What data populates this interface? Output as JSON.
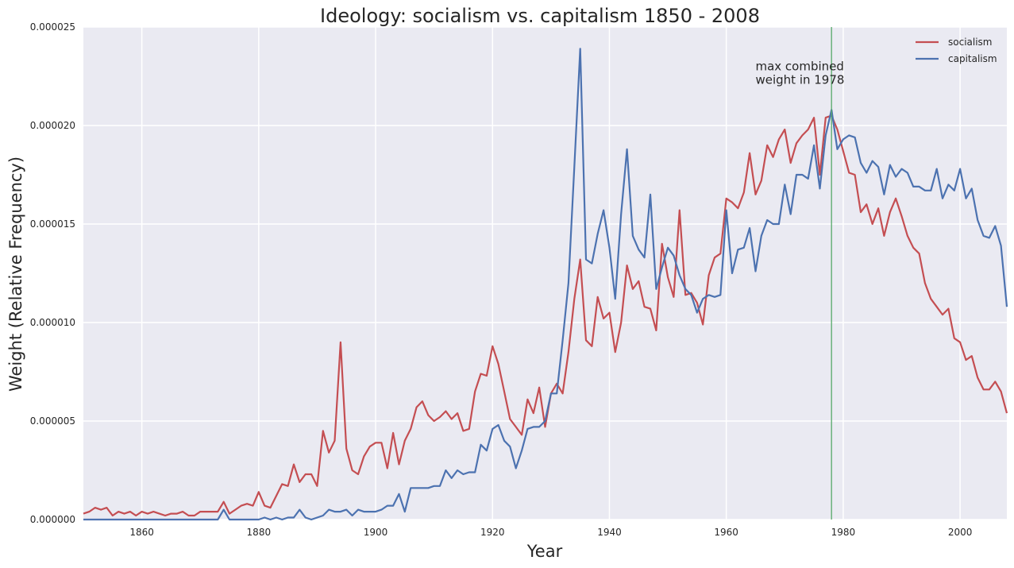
{
  "chart_data": {
    "type": "line",
    "title": "Ideology: socialism vs. capitalism 1850 - 2008",
    "xlabel": "Year",
    "ylabel": "Weight (Relative Frequency)",
    "xlim": [
      1850,
      2008
    ],
    "ylim": [
      0,
      2.5e-05
    ],
    "xticks": [
      1860,
      1880,
      1900,
      1920,
      1940,
      1960,
      1980,
      2000
    ],
    "yticks": [
      0,
      5e-06,
      1e-05,
      1.5e-05,
      2e-05,
      2.5e-05
    ],
    "ytick_labels": [
      "0.000000",
      "0.000005",
      "0.000010",
      "0.000015",
      "0.000020",
      "0.000025"
    ],
    "grid": true,
    "legend_position": "top-right",
    "vline": {
      "x": 1978,
      "color": "#55a868"
    },
    "annotation": {
      "lines": [
        "max combined",
        "weight in 1978"
      ],
      "x": 1965,
      "y": 2.28e-05
    },
    "x": [
      1850,
      1851,
      1852,
      1853,
      1854,
      1855,
      1856,
      1857,
      1858,
      1859,
      1860,
      1861,
      1862,
      1863,
      1864,
      1865,
      1866,
      1867,
      1868,
      1869,
      1870,
      1871,
      1872,
      1873,
      1874,
      1875,
      1876,
      1877,
      1878,
      1879,
      1880,
      1881,
      1882,
      1883,
      1884,
      1885,
      1886,
      1887,
      1888,
      1889,
      1890,
      1891,
      1892,
      1893,
      1894,
      1895,
      1896,
      1897,
      1898,
      1899,
      1900,
      1901,
      1902,
      1903,
      1904,
      1905,
      1906,
      1907,
      1908,
      1909,
      1910,
      1911,
      1912,
      1913,
      1914,
      1915,
      1916,
      1917,
      1918,
      1919,
      1920,
      1921,
      1922,
      1923,
      1924,
      1925,
      1926,
      1927,
      1928,
      1929,
      1930,
      1931,
      1932,
      1933,
      1934,
      1935,
      1936,
      1937,
      1938,
      1939,
      1940,
      1941,
      1942,
      1943,
      1944,
      1945,
      1946,
      1947,
      1948,
      1949,
      1950,
      1951,
      1952,
      1953,
      1954,
      1955,
      1956,
      1957,
      1958,
      1959,
      1960,
      1961,
      1962,
      1963,
      1964,
      1965,
      1966,
      1967,
      1968,
      1969,
      1970,
      1971,
      1972,
      1973,
      1974,
      1975,
      1976,
      1977,
      1978,
      1979,
      1980,
      1981,
      1982,
      1983,
      1984,
      1985,
      1986,
      1987,
      1988,
      1989,
      1990,
      1991,
      1992,
      1993,
      1994,
      1995,
      1996,
      1997,
      1998,
      1999,
      2000,
      2001,
      2002,
      2003,
      2004,
      2005,
      2006,
      2007,
      2008
    ],
    "series": [
      {
        "name": "socialism",
        "color": "#c44e52",
        "values": [
          3e-07,
          4e-07,
          6e-07,
          5e-07,
          6e-07,
          2e-07,
          4e-07,
          3e-07,
          4e-07,
          2e-07,
          4e-07,
          3e-07,
          4e-07,
          3e-07,
          2e-07,
          3e-07,
          3e-07,
          4e-07,
          2e-07,
          2e-07,
          4e-07,
          4e-07,
          4e-07,
          4e-07,
          9e-07,
          3e-07,
          5e-07,
          7e-07,
          8e-07,
          7e-07,
          1.4e-06,
          7e-07,
          6e-07,
          1.2e-06,
          1.8e-06,
          1.7e-06,
          2.8e-06,
          1.9e-06,
          2.3e-06,
          2.3e-06,
          1.7e-06,
          4.5e-06,
          3.4e-06,
          4e-06,
          9e-06,
          3.6e-06,
          2.5e-06,
          2.3e-06,
          3.2e-06,
          3.7e-06,
          3.9e-06,
          3.9e-06,
          2.6e-06,
          4.4e-06,
          2.8e-06,
          4e-06,
          4.6e-06,
          5.7e-06,
          6e-06,
          5.3e-06,
          5e-06,
          5.2e-06,
          5.5e-06,
          5.1e-06,
          5.4e-06,
          4.5e-06,
          4.6e-06,
          6.5e-06,
          7.4e-06,
          7.3e-06,
          8.8e-06,
          7.9e-06,
          6.5e-06,
          5.1e-06,
          4.7e-06,
          4.3e-06,
          6.1e-06,
          5.4e-06,
          6.7e-06,
          4.7e-06,
          6.4e-06,
          6.9e-06,
          6.4e-06,
          8.5e-06,
          1.12e-05,
          1.32e-05,
          9.1e-06,
          8.8e-06,
          1.13e-05,
          1.02e-05,
          1.05e-05,
          8.5e-06,
          1e-05,
          1.29e-05,
          1.17e-05,
          1.21e-05,
          1.08e-05,
          1.07e-05,
          9.6e-06,
          1.4e-05,
          1.23e-05,
          1.13e-05,
          1.57e-05,
          1.14e-05,
          1.15e-05,
          1.1e-05,
          9.9e-06,
          1.24e-05,
          1.33e-05,
          1.35e-05,
          1.63e-05,
          1.61e-05,
          1.58e-05,
          1.66e-05,
          1.86e-05,
          1.65e-05,
          1.72e-05,
          1.9e-05,
          1.84e-05,
          1.93e-05,
          1.98e-05,
          1.81e-05,
          1.91e-05,
          1.95e-05,
          1.98e-05,
          2.04e-05,
          1.75e-05,
          2.04e-05,
          2.05e-05,
          1.98e-05,
          1.87e-05,
          1.76e-05,
          1.75e-05,
          1.56e-05,
          1.6e-05,
          1.5e-05,
          1.58e-05,
          1.44e-05,
          1.56e-05,
          1.63e-05,
          1.54e-05,
          1.44e-05,
          1.38e-05,
          1.35e-05,
          1.2e-05,
          1.12e-05,
          1.08e-05,
          1.04e-05,
          1.07e-05,
          9.2e-06,
          9e-06,
          8.1e-06,
          8.3e-06,
          7.2e-06,
          6.6e-06,
          6.6e-06,
          7e-06,
          6.5e-06,
          5.4e-06
        ]
      },
      {
        "name": "capitalism",
        "color": "#4c72b0",
        "values": [
          0,
          0,
          0,
          0,
          0,
          0,
          0,
          0,
          0,
          0,
          0,
          0,
          0,
          0,
          0,
          0,
          0,
          0,
          0,
          0,
          0,
          0,
          0,
          0,
          5e-07,
          0,
          0,
          0,
          0,
          0,
          0,
          1e-07,
          0,
          1e-07,
          0,
          1e-07,
          1e-07,
          5e-07,
          1e-07,
          0,
          1e-07,
          2e-07,
          5e-07,
          4e-07,
          4e-07,
          5e-07,
          2e-07,
          5e-07,
          4e-07,
          4e-07,
          4e-07,
          5e-07,
          7e-07,
          7e-07,
          1.3e-06,
          4e-07,
          1.6e-06,
          1.6e-06,
          1.6e-06,
          1.6e-06,
          1.7e-06,
          1.7e-06,
          2.5e-06,
          2.1e-06,
          2.5e-06,
          2.3e-06,
          2.4e-06,
          2.4e-06,
          3.8e-06,
          3.5e-06,
          4.6e-06,
          4.8e-06,
          4e-06,
          3.7e-06,
          2.6e-06,
          3.5e-06,
          4.6e-06,
          4.7e-06,
          4.7e-06,
          5e-06,
          6.4e-06,
          6.4e-06,
          9.1e-06,
          1.2e-05,
          1.79e-05,
          2.39e-05,
          1.32e-05,
          1.3e-05,
          1.45e-05,
          1.57e-05,
          1.38e-05,
          1.12e-05,
          1.55e-05,
          1.88e-05,
          1.44e-05,
          1.37e-05,
          1.33e-05,
          1.65e-05,
          1.17e-05,
          1.28e-05,
          1.38e-05,
          1.34e-05,
          1.24e-05,
          1.17e-05,
          1.14e-05,
          1.05e-05,
          1.12e-05,
          1.14e-05,
          1.13e-05,
          1.14e-05,
          1.57e-05,
          1.25e-05,
          1.37e-05,
          1.38e-05,
          1.48e-05,
          1.26e-05,
          1.44e-05,
          1.52e-05,
          1.5e-05,
          1.5e-05,
          1.7e-05,
          1.55e-05,
          1.75e-05,
          1.75e-05,
          1.73e-05,
          1.9e-05,
          1.68e-05,
          1.95e-05,
          2.08e-05,
          1.88e-05,
          1.93e-05,
          1.95e-05,
          1.94e-05,
          1.81e-05,
          1.76e-05,
          1.82e-05,
          1.79e-05,
          1.65e-05,
          1.8e-05,
          1.74e-05,
          1.78e-05,
          1.76e-05,
          1.69e-05,
          1.69e-05,
          1.67e-05,
          1.67e-05,
          1.78e-05,
          1.63e-05,
          1.7e-05,
          1.67e-05,
          1.78e-05,
          1.63e-05,
          1.68e-05,
          1.52e-05,
          1.44e-05,
          1.43e-05,
          1.49e-05,
          1.39e-05,
          1.08e-05
        ]
      }
    ]
  }
}
